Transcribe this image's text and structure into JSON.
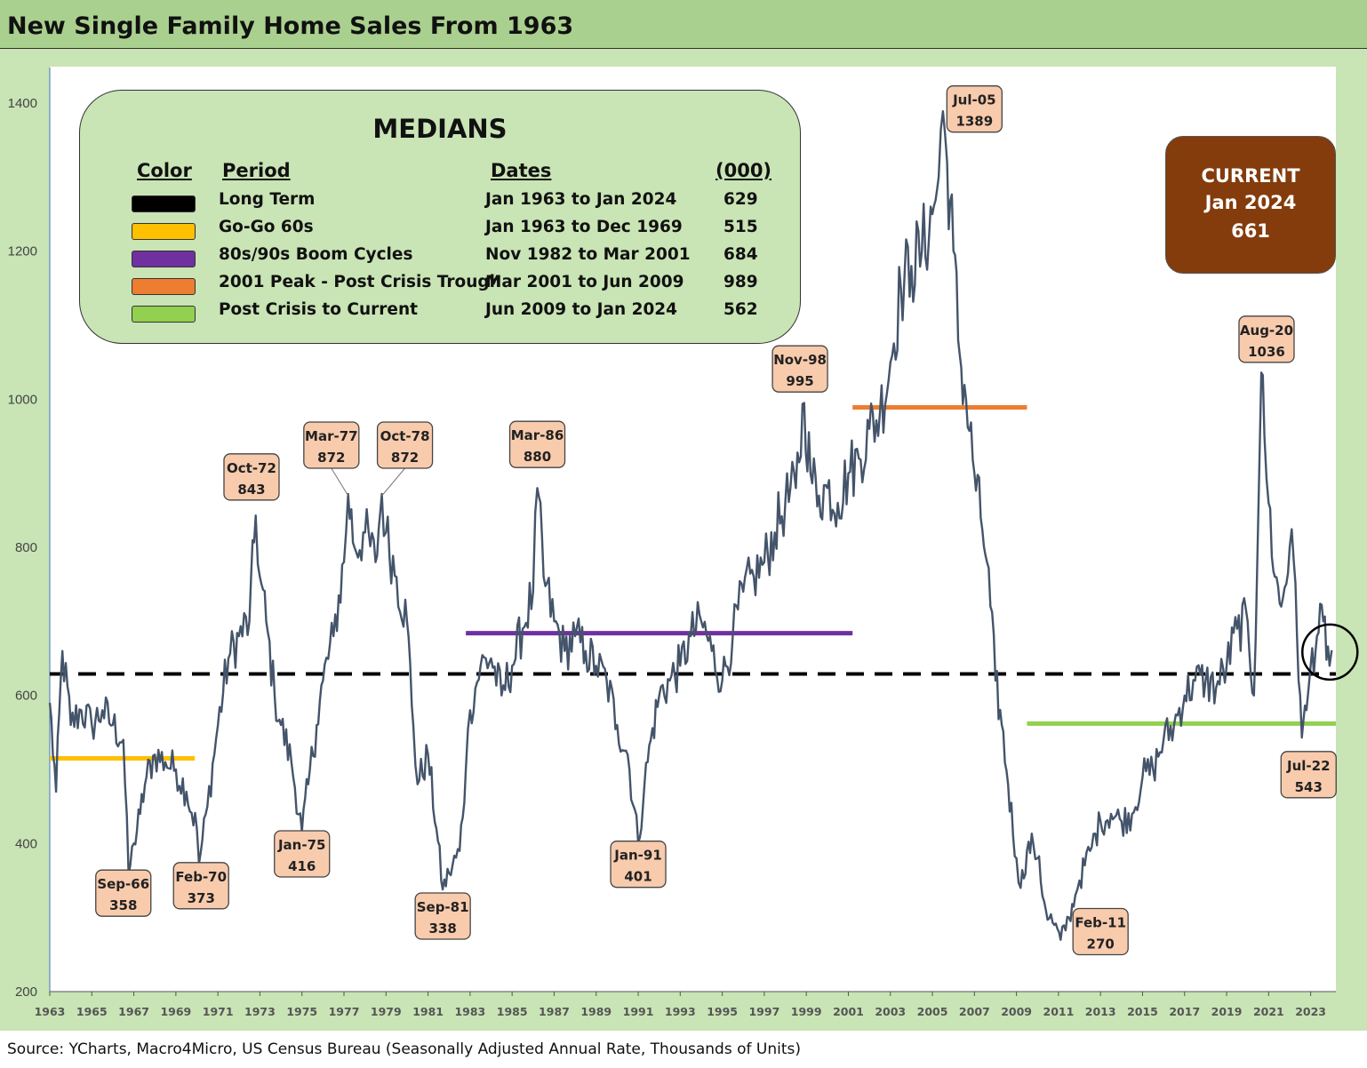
{
  "title": "New Single Family Home Sales From 1963",
  "source": "Source: YCharts, Macro4Micro, US Census Bureau (Seasonally Adjusted Annual Rate, Thousands of Units)",
  "medians_panel": {
    "title": "MEDIANS",
    "headers": {
      "color": "Color",
      "period": "Period",
      "dates": "Dates",
      "value": "(000)"
    },
    "rows": [
      {
        "color": "#000000",
        "period": "Long Term",
        "dates": "Jan 1963 to Jan 2024",
        "value": "629"
      },
      {
        "color": "#ffc000",
        "period": "Go-Go 60s",
        "dates": "Jan 1963 to Dec 1969",
        "value": "515"
      },
      {
        "color": "#7030a0",
        "period": "80s/90s Boom Cycles",
        "dates": "Nov 1982 to Mar 2001",
        "value": "684"
      },
      {
        "color": "#ed7d31",
        "period": "2001 Peak - Post Crisis Trough",
        "dates": "Mar 2001 to Jun 2009",
        "value": "989"
      },
      {
        "color": "#92d050",
        "period": "Post Crisis to Current",
        "dates": "Jun 2009 to Jan 2024",
        "value": "562"
      }
    ]
  },
  "current": {
    "label": "CURRENT",
    "date": "Jan 2024",
    "value": "661"
  },
  "chart_data": {
    "type": "line",
    "title": "New Single Family Home Sales From 1963",
    "units": "Thousands of Units, SAAR",
    "ylim": [
      200,
      1400
    ],
    "xlim": [
      1963.0,
      2024.2
    ],
    "y_ticks": [
      200,
      400,
      600,
      800,
      1000,
      1200,
      1400
    ],
    "x_ticks": [
      "1963",
      "1965",
      "1967",
      "1969",
      "1971",
      "1973",
      "1975",
      "1977",
      "1979",
      "1981",
      "1983",
      "1985",
      "1987",
      "1989",
      "1991",
      "1993",
      "1995",
      "1997",
      "1999",
      "2001",
      "2003",
      "2005",
      "2007",
      "2009",
      "2011",
      "2013",
      "2015",
      "2017",
      "2019",
      "2021",
      "2023"
    ],
    "series": [
      {
        "color": "#44546a",
        "points": [
          [
            1963.0,
            590
          ],
          [
            1963.3,
            470
          ],
          [
            1963.6,
            660
          ],
          [
            1964.0,
            560
          ],
          [
            1964.5,
            580
          ],
          [
            1965.0,
            560
          ],
          [
            1965.5,
            580
          ],
          [
            1966.0,
            560
          ],
          [
            1966.5,
            540
          ],
          [
            1966.75,
            358
          ],
          [
            1967.0,
            400
          ],
          [
            1967.3,
            440
          ],
          [
            1967.6,
            490
          ],
          [
            1968.0,
            520
          ],
          [
            1968.5,
            510
          ],
          [
            1969.0,
            500
          ],
          [
            1969.5,
            470
          ],
          [
            1970.0,
            420
          ],
          [
            1970.1,
            373
          ],
          [
            1970.5,
            450
          ],
          [
            1971.0,
            560
          ],
          [
            1971.5,
            650
          ],
          [
            1972.0,
            680
          ],
          [
            1972.5,
            700
          ],
          [
            1972.8,
            843
          ],
          [
            1973.0,
            760
          ],
          [
            1973.3,
            700
          ],
          [
            1973.7,
            600
          ],
          [
            1974.0,
            560
          ],
          [
            1974.5,
            510
          ],
          [
            1975.0,
            416
          ],
          [
            1975.3,
            480
          ],
          [
            1975.7,
            560
          ],
          [
            1976.0,
            620
          ],
          [
            1976.5,
            680
          ],
          [
            1977.0,
            780
          ],
          [
            1977.2,
            872
          ],
          [
            1977.5,
            800
          ],
          [
            1978.0,
            820
          ],
          [
            1978.5,
            780
          ],
          [
            1978.8,
            872
          ],
          [
            1979.0,
            820
          ],
          [
            1979.5,
            760
          ],
          [
            1980.0,
            700
          ],
          [
            1980.3,
            560
          ],
          [
            1980.5,
            480
          ],
          [
            1981.0,
            520
          ],
          [
            1981.4,
            420
          ],
          [
            1981.7,
            338
          ],
          [
            1982.0,
            360
          ],
          [
            1982.5,
            390
          ],
          [
            1982.8,
            500
          ],
          [
            1983.0,
            580
          ],
          [
            1983.5,
            640
          ],
          [
            1984.0,
            650
          ],
          [
            1984.5,
            600
          ],
          [
            1985.0,
            640
          ],
          [
            1985.5,
            690
          ],
          [
            1986.0,
            740
          ],
          [
            1986.2,
            880
          ],
          [
            1986.5,
            760
          ],
          [
            1987.0,
            700
          ],
          [
            1987.5,
            660
          ],
          [
            1988.0,
            680
          ],
          [
            1988.5,
            660
          ],
          [
            1989.0,
            640
          ],
          [
            1989.5,
            620
          ],
          [
            1990.0,
            560
          ],
          [
            1990.5,
            520
          ],
          [
            1991.0,
            401
          ],
          [
            1991.3,
            480
          ],
          [
            1991.6,
            540
          ],
          [
            1992.0,
            600
          ],
          [
            1992.5,
            620
          ],
          [
            1993.0,
            640
          ],
          [
            1993.5,
            680
          ],
          [
            1994.0,
            700
          ],
          [
            1994.5,
            660
          ],
          [
            1995.0,
            620
          ],
          [
            1995.5,
            680
          ],
          [
            1996.0,
            740
          ],
          [
            1996.5,
            760
          ],
          [
            1997.0,
            780
          ],
          [
            1997.5,
            820
          ],
          [
            1998.0,
            860
          ],
          [
            1998.5,
            880
          ],
          [
            1998.9,
            995
          ],
          [
            1999.2,
            900
          ],
          [
            1999.6,
            870
          ],
          [
            2000.0,
            880
          ],
          [
            2000.5,
            860
          ],
          [
            2001.0,
            900
          ],
          [
            2001.5,
            920
          ],
          [
            2002.0,
            960
          ],
          [
            2002.5,
            980
          ],
          [
            2003.0,
            1050
          ],
          [
            2003.5,
            1150
          ],
          [
            2004.0,
            1180
          ],
          [
            2004.5,
            1200
          ],
          [
            2005.0,
            1250
          ],
          [
            2005.3,
            1300
          ],
          [
            2005.5,
            1389
          ],
          [
            2005.7,
            1320
          ],
          [
            2006.0,
            1200
          ],
          [
            2006.3,
            1060
          ],
          [
            2006.6,
            1000
          ],
          [
            2007.0,
            900
          ],
          [
            2007.3,
            840
          ],
          [
            2007.6,
            780
          ],
          [
            2008.0,
            620
          ],
          [
            2008.3,
            560
          ],
          [
            2008.6,
            480
          ],
          [
            2009.0,
            380
          ],
          [
            2009.2,
            340
          ],
          [
            2009.5,
            390
          ],
          [
            2009.8,
            400
          ],
          [
            2010.0,
            380
          ],
          [
            2010.4,
            310
          ],
          [
            2010.8,
            290
          ],
          [
            2011.1,
            270
          ],
          [
            2011.5,
            300
          ],
          [
            2011.8,
            330
          ],
          [
            2012.0,
            350
          ],
          [
            2012.5,
            390
          ],
          [
            2013.0,
            430
          ],
          [
            2013.5,
            440
          ],
          [
            2014.0,
            430
          ],
          [
            2014.5,
            440
          ],
          [
            2015.0,
            490
          ],
          [
            2015.5,
            500
          ],
          [
            2016.0,
            540
          ],
          [
            2016.5,
            560
          ],
          [
            2017.0,
            600
          ],
          [
            2017.5,
            620
          ],
          [
            2018.0,
            620
          ],
          [
            2018.5,
            610
          ],
          [
            2019.0,
            640
          ],
          [
            2019.5,
            690
          ],
          [
            2020.0,
            700
          ],
          [
            2020.3,
            600
          ],
          [
            2020.55,
            900
          ],
          [
            2020.65,
            1036
          ],
          [
            2020.8,
            950
          ],
          [
            2021.0,
            860
          ],
          [
            2021.3,
            760
          ],
          [
            2021.6,
            720
          ],
          [
            2022.0,
            800
          ],
          [
            2022.2,
            780
          ],
          [
            2022.5,
            600
          ],
          [
            2022.58,
            543
          ],
          [
            2022.8,
            580
          ],
          [
            2023.0,
            640
          ],
          [
            2023.3,
            680
          ],
          [
            2023.6,
            700
          ],
          [
            2023.9,
            640
          ],
          [
            2024.0,
            661
          ]
        ]
      }
    ],
    "median_lines": [
      {
        "name": "Long Term",
        "value": 629,
        "x_start": 1963.0,
        "x_end": 2024.2,
        "color": "#000000",
        "dashed": true
      },
      {
        "name": "Go-Go 60s",
        "value": 515,
        "x_start": 1963.0,
        "x_end": 1969.9,
        "color": "#ffc000"
      },
      {
        "name": "80s/90s Boom Cycles",
        "value": 684,
        "x_start": 1982.8,
        "x_end": 2001.2,
        "color": "#7030a0"
      },
      {
        "name": "2001 Peak - Post Crisis Trough",
        "value": 989,
        "x_start": 2001.2,
        "x_end": 2009.5,
        "color": "#ed7d31"
      },
      {
        "name": "Post Crisis to Current",
        "value": 562,
        "x_start": 2009.5,
        "x_end": 2024.2,
        "color": "#92d050"
      }
    ],
    "annotations": [
      {
        "label": "Sep-66",
        "value": "358",
        "x": 1966.75,
        "y": 358,
        "box_x": 1966.5,
        "box_y": 333
      },
      {
        "label": "Feb-70",
        "value": "373",
        "x": 1970.1,
        "y": 373,
        "box_x": 1970.2,
        "box_y": 343
      },
      {
        "label": "Oct-72",
        "value": "843",
        "x": 1972.8,
        "y": 843,
        "box_x": 1972.6,
        "box_y": 895
      },
      {
        "label": "Jan-75",
        "value": "416",
        "x": 1975.0,
        "y": 416,
        "box_x": 1975.0,
        "box_y": 386
      },
      {
        "label": "Mar-77",
        "value": "872",
        "x": 1977.2,
        "y": 872,
        "box_x": 1976.4,
        "box_y": 938,
        "leader": true
      },
      {
        "label": "Oct-78",
        "value": "872",
        "x": 1978.8,
        "y": 872,
        "box_x": 1979.9,
        "box_y": 938,
        "leader": true
      },
      {
        "label": "Sep-81",
        "value": "338",
        "x": 1981.7,
        "y": 338,
        "box_x": 1981.7,
        "box_y": 302
      },
      {
        "label": "Mar-86",
        "value": "880",
        "x": 1986.2,
        "y": 880,
        "box_x": 1986.2,
        "box_y": 939
      },
      {
        "label": "Jan-91",
        "value": "401",
        "x": 1991.0,
        "y": 401,
        "box_x": 1991.0,
        "box_y": 372
      },
      {
        "label": "Nov-98",
        "value": "995",
        "x": 1998.9,
        "y": 995,
        "box_x": 1998.7,
        "box_y": 1041
      },
      {
        "label": "Jul-05",
        "value": "1389",
        "x": 2005.5,
        "y": 1389,
        "box_x": 2007.0,
        "box_y": 1392
      },
      {
        "label": "Feb-11",
        "value": "270",
        "x": 2011.1,
        "y": 270,
        "box_x": 2013.0,
        "box_y": 281
      },
      {
        "label": "Aug-20",
        "value": "1036",
        "x": 2020.65,
        "y": 1036,
        "box_x": 2020.9,
        "box_y": 1081
      },
      {
        "label": "Jul-22",
        "value": "543",
        "x": 2022.58,
        "y": 543,
        "box_x": 2022.9,
        "box_y": 493
      }
    ],
    "highlight": {
      "x": 2024.0,
      "y": 661,
      "shape": "circle"
    },
    "grid": false,
    "legend": "top-left"
  }
}
